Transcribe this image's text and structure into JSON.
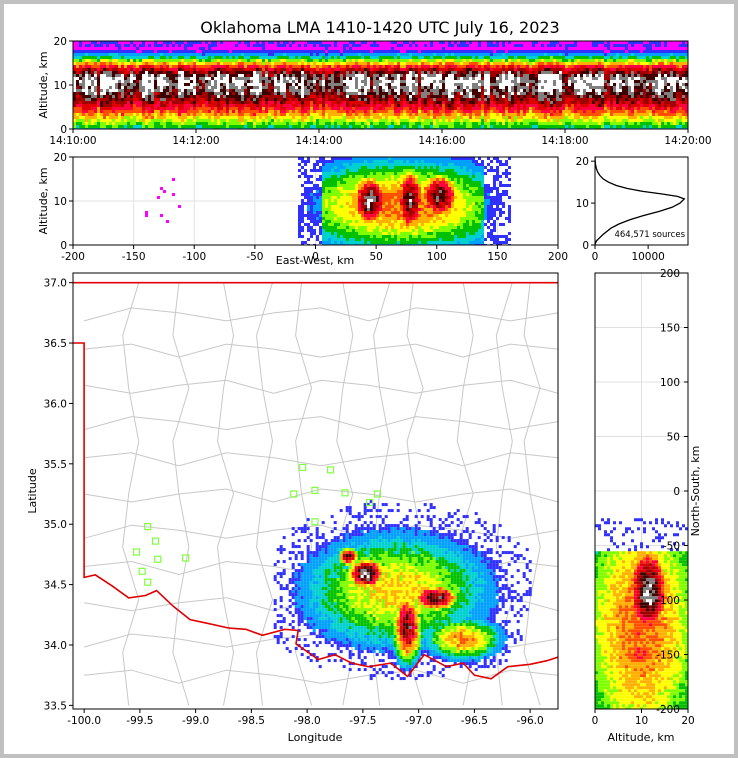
{
  "title": "Oklahoma LMA 1410-1420 UTC July 16, 2023",
  "colors": {
    "density_ramp": [
      "#8b00ff",
      "#c000ff",
      "#ff00ff",
      "#3030ff",
      "#00a0ff",
      "#00d0d0",
      "#00c000",
      "#80ff00",
      "#ffff00",
      "#ffb000",
      "#ff5000",
      "#ff0040",
      "#e00000",
      "#a00000",
      "#400000",
      "#808080",
      "#ffffff"
    ],
    "border": "#e00000",
    "county": "#c8c8c8",
    "station": "#80ff40"
  },
  "chart_data": [
    {
      "id": "time_height",
      "type": "heatmap",
      "xlabel": "",
      "ylabel": "Altitude, km",
      "x_ticks": [
        "14:10:00",
        "14:12:00",
        "14:14:00",
        "14:16:00",
        "14:18:00",
        "14:20:00"
      ],
      "y_ticks": [
        "0",
        "10",
        "20"
      ],
      "xlim": [
        "14:10:00",
        "14:20:00"
      ],
      "ylim": [
        0,
        20
      ],
      "peak_altitude_km": 11
    },
    {
      "id": "ew_altitude",
      "type": "heatmap",
      "xlabel": "East-West, km",
      "ylabel": "Altitude, km",
      "x_ticks": [
        "-200",
        "-150",
        "-100",
        "-50",
        "0",
        "50",
        "100",
        "150",
        "200"
      ],
      "y_ticks": [
        "0",
        "10",
        "20"
      ],
      "xlim": [
        -200,
        200
      ],
      "ylim": [
        0,
        20
      ],
      "cores_km": [
        {
          "x": 45,
          "z": 10
        },
        {
          "x": 78,
          "z": 10
        },
        {
          "x": 102,
          "z": 11
        }
      ]
    },
    {
      "id": "altitude_histogram",
      "type": "line",
      "xlabel": "",
      "ylabel": "",
      "x_ticks": [
        "0",
        "10000"
      ],
      "y_ticks": [
        "0",
        "10",
        "20"
      ],
      "xlim": [
        0,
        17500
      ],
      "ylim": [
        0,
        21
      ],
      "annotation": "464,571 sources",
      "x": [
        0,
        100,
        300,
        700,
        1500,
        3000,
        4500,
        6500,
        9000,
        12000,
        14500,
        16000,
        16800,
        15500,
        12500,
        9000,
        6000,
        4000,
        2500,
        1500,
        900,
        500,
        250,
        100,
        30,
        0
      ],
      "y": [
        0,
        0.5,
        1,
        1.5,
        2.5,
        4,
        5,
        6,
        7,
        8,
        9,
        10,
        11,
        11.6,
        12.2,
        12.8,
        13.5,
        14.2,
        15,
        15.8,
        16.6,
        17.4,
        18.3,
        19.2,
        20,
        21
      ]
    },
    {
      "id": "plan_view",
      "type": "heatmap",
      "xlabel": "Longitude",
      "ylabel": "Latitude",
      "x_ticks": [
        "-100.0",
        "-99.5",
        "-99.0",
        "-98.5",
        "-98.0",
        "-97.5",
        "-97.0",
        "-96.5",
        "-96.0"
      ],
      "y_ticks": [
        "33.5",
        "34.0",
        "34.5",
        "35.0",
        "35.5",
        "36.0",
        "36.5",
        "37.0"
      ],
      "xlim": [
        -100.1,
        -95.75
      ],
      "ylim": [
        33.47,
        37.08
      ],
      "stations": [
        {
          "lon": -98.04,
          "lat": 35.47
        },
        {
          "lon": -97.79,
          "lat": 35.45
        },
        {
          "lon": -98.12,
          "lat": 35.25
        },
        {
          "lon": -97.93,
          "lat": 35.28
        },
        {
          "lon": -97.66,
          "lat": 35.26
        },
        {
          "lon": -97.37,
          "lat": 35.25
        },
        {
          "lon": -97.44,
          "lat": 35.18
        },
        {
          "lon": -97.93,
          "lat": 35.02
        },
        {
          "lon": -99.43,
          "lat": 34.98
        },
        {
          "lon": -99.36,
          "lat": 34.86
        },
        {
          "lon": -99.53,
          "lat": 34.77
        },
        {
          "lon": -99.34,
          "lat": 34.71
        },
        {
          "lon": -99.09,
          "lat": 34.72
        },
        {
          "lon": -99.48,
          "lat": 34.61
        },
        {
          "lon": -99.43,
          "lat": 34.52
        }
      ],
      "cores": [
        {
          "lon": -97.47,
          "lat": 34.59
        },
        {
          "lon": -97.63,
          "lat": 34.73
        },
        {
          "lon": -96.85,
          "lat": 34.39
        },
        {
          "lon": -97.1,
          "lat": 34.14
        },
        {
          "lon": -97.12,
          "lat": 34.26
        }
      ]
    },
    {
      "id": "altitude_ns",
      "type": "heatmap",
      "xlabel": "Altitude, km",
      "ylabel": "North-South, km",
      "x_ticks": [
        "0",
        "10",
        "20"
      ],
      "y_ticks": [
        "-200",
        "-150",
        "-100",
        "-50",
        "0",
        "50",
        "100",
        "150",
        "200"
      ],
      "xlim": [
        0,
        20
      ],
      "ylim": [
        -200,
        200
      ],
      "cores_km": [
        {
          "z": 11,
          "y": -82
        },
        {
          "z": 12,
          "y": -100
        }
      ]
    }
  ]
}
